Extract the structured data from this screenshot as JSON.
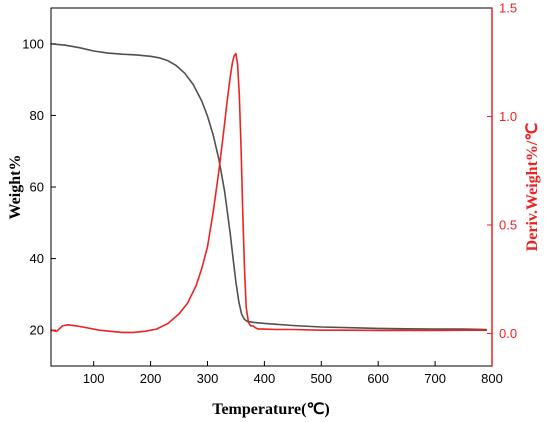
{
  "chart_data": {
    "type": "line",
    "xlabel": "Temperature(℃)",
    "ylabel_left": "Weight%",
    "ylabel_right": "Deriv.Weight%/℃",
    "xlim": [
      25,
      800
    ],
    "ylim_left": [
      10,
      110
    ],
    "ylim_right": [
      -0.15,
      1.5
    ],
    "x_ticks": [
      100,
      200,
      300,
      400,
      500,
      600,
      700,
      800
    ],
    "y_left_ticks": [
      20,
      40,
      60,
      80,
      100
    ],
    "y_right_ticks": [
      0.0,
      0.5,
      1.0,
      1.5
    ],
    "x_tick_labels": [
      "100",
      "200",
      "300",
      "400",
      "500",
      "600",
      "700",
      "800"
    ],
    "y_left_tick_labels": [
      "20",
      "40",
      "60",
      "80",
      "100"
    ],
    "y_right_tick_labels": [
      "0.0",
      "0.5",
      "1.0",
      "1.5"
    ],
    "grid": false,
    "series": [
      {
        "axis": "left",
        "color": "#505050",
        "points": [
          [
            25,
            100.0
          ],
          [
            50,
            99.6
          ],
          [
            75,
            98.9
          ],
          [
            100,
            98.0
          ],
          [
            125,
            97.4
          ],
          [
            150,
            97.1
          ],
          [
            175,
            96.9
          ],
          [
            200,
            96.5
          ],
          [
            215,
            96.1
          ],
          [
            230,
            95.3
          ],
          [
            245,
            93.9
          ],
          [
            260,
            91.8
          ],
          [
            275,
            88.6
          ],
          [
            290,
            84.0
          ],
          [
            300,
            79.8
          ],
          [
            310,
            74.5
          ],
          [
            320,
            67.7
          ],
          [
            330,
            58.8
          ],
          [
            340,
            47.0
          ],
          [
            345,
            40.0
          ],
          [
            350,
            33.5
          ],
          [
            355,
            28.0
          ],
          [
            360,
            24.5
          ],
          [
            365,
            23.0
          ],
          [
            370,
            22.5
          ],
          [
            380,
            22.2
          ],
          [
            400,
            21.9
          ],
          [
            450,
            21.3
          ],
          [
            500,
            20.9
          ],
          [
            550,
            20.7
          ],
          [
            600,
            20.5
          ],
          [
            650,
            20.4
          ],
          [
            700,
            20.3
          ],
          [
            750,
            20.3
          ],
          [
            790,
            20.2
          ]
        ]
      },
      {
        "axis": "right",
        "color": "#ee2222",
        "points": [
          [
            25,
            0.015
          ],
          [
            35,
            0.01
          ],
          [
            45,
            0.035
          ],
          [
            55,
            0.04
          ],
          [
            70,
            0.035
          ],
          [
            90,
            0.025
          ],
          [
            110,
            0.015
          ],
          [
            130,
            0.01
          ],
          [
            150,
            0.005
          ],
          [
            170,
            0.005
          ],
          [
            190,
            0.01
          ],
          [
            210,
            0.02
          ],
          [
            230,
            0.045
          ],
          [
            250,
            0.09
          ],
          [
            265,
            0.14
          ],
          [
            280,
            0.22
          ],
          [
            290,
            0.3
          ],
          [
            300,
            0.4
          ],
          [
            310,
            0.56
          ],
          [
            320,
            0.75
          ],
          [
            328,
            0.92
          ],
          [
            335,
            1.08
          ],
          [
            340,
            1.18
          ],
          [
            344,
            1.25
          ],
          [
            347,
            1.28
          ],
          [
            350,
            1.29
          ],
          [
            353,
            1.24
          ],
          [
            356,
            1.1
          ],
          [
            359,
            0.85
          ],
          [
            362,
            0.55
          ],
          [
            365,
            0.3
          ],
          [
            368,
            0.12
          ],
          [
            372,
            0.05
          ],
          [
            376,
            0.035
          ],
          [
            380,
            0.035
          ],
          [
            385,
            0.025
          ],
          [
            390,
            0.02
          ],
          [
            400,
            0.02
          ],
          [
            420,
            0.018
          ],
          [
            450,
            0.018
          ],
          [
            500,
            0.015
          ],
          [
            550,
            0.015
          ],
          [
            600,
            0.014
          ],
          [
            650,
            0.014
          ],
          [
            700,
            0.014
          ],
          [
            750,
            0.015
          ],
          [
            790,
            0.015
          ]
        ]
      }
    ]
  }
}
